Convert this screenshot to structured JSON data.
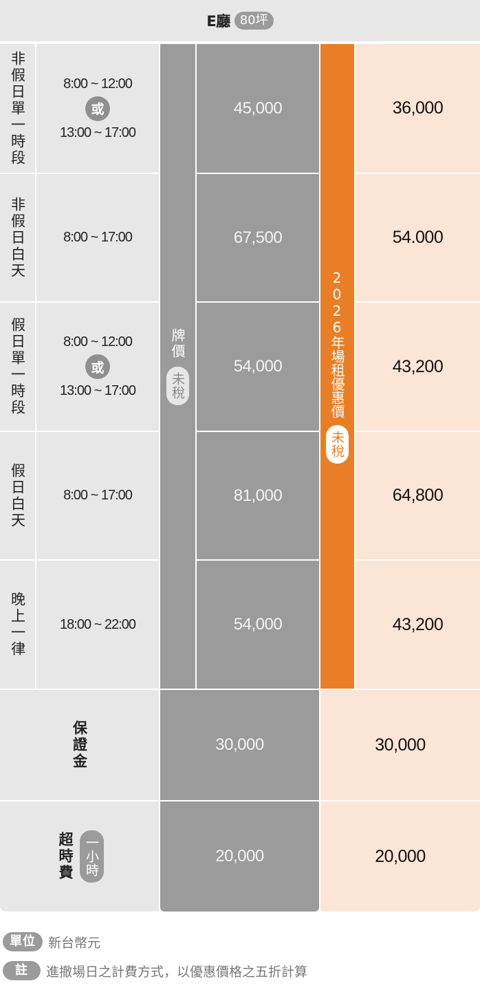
{
  "header": {
    "hall": "E廳",
    "size": "80坪"
  },
  "list_price": {
    "label": "牌價",
    "tax": "未稅"
  },
  "discount": {
    "label": "2026年場租優惠價",
    "tax": "未稅"
  },
  "rows": [
    {
      "label": "非假日單一時段",
      "time_a": "8:00 ~ 12:00",
      "or": "或",
      "time_b": "13:00 ~ 17:00",
      "list": "45,000",
      "promo": "36,000"
    },
    {
      "label": "非假日白天",
      "time": "8:00 ~ 17:00",
      "list": "67,500",
      "promo": "54.000"
    },
    {
      "label": "假日單一時段",
      "time_a": "8:00 ~ 12:00",
      "or": "或",
      "time_b": "13:00 ~ 17:00",
      "list": "54,000",
      "promo": "43,200"
    },
    {
      "label": "假日白天",
      "time": "8:00 ~ 17:00",
      "list": "81,000",
      "promo": "64,800"
    },
    {
      "label": "晚上一律",
      "time": "18:00 ~ 22:00",
      "list": "54,000",
      "promo": "43,200"
    }
  ],
  "deposit": {
    "label": "保證金",
    "list": "30,000",
    "promo": "30,000"
  },
  "overtime": {
    "label": "超時費",
    "unit": "一小時",
    "list": "20,000",
    "promo": "20,000"
  },
  "footer": {
    "unit_badge": "單位",
    "unit_text": "新台幣元",
    "note_badge": "註",
    "note_text": "進撤場日之計費方式，以優惠價格之五折計算"
  },
  "colors": {
    "grey": "#e7e7e7",
    "dark": "#9b9b9b",
    "peach": "#fbe5d6",
    "orange": "#e87f26"
  }
}
